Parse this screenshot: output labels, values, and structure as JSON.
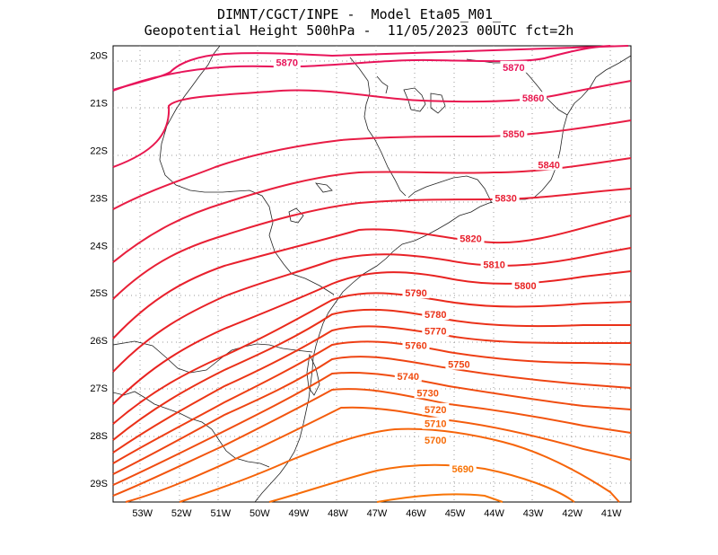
{
  "header": {
    "line1": "DIMNT/CGCT/INPE -  Model Eta05_M01_",
    "line2": "Geopotential Height 500hPa -  11/05/2023 00UTC fct=2h"
  },
  "axes": {
    "lon_labels": [
      "53W",
      "52W",
      "51W",
      "50W",
      "49W",
      "48W",
      "47W",
      "46W",
      "45W",
      "44W",
      "43W",
      "42W",
      "41W"
    ],
    "lat_labels": [
      "20S",
      "21S",
      "22S",
      "23S",
      "24S",
      "25S",
      "26S",
      "27S",
      "28S",
      "29S"
    ]
  },
  "chart_data": {
    "type": "contour",
    "title": "Geopotential Height 500hPa",
    "variable": "Geopotential Height 500hPa",
    "lon_range": [
      -53.75,
      -40.5
    ],
    "lat_range": [
      -29.4,
      -19.8
    ],
    "levels": [
      5690,
      5700,
      5710,
      5720,
      5730,
      5740,
      5750,
      5760,
      5770,
      5780,
      5790,
      5800,
      5810,
      5820,
      5830,
      5840,
      5850,
      5860,
      5870
    ],
    "labeled_contours": [
      {
        "value": "5870",
        "lon": -49.3,
        "lat": -20.15,
        "color": "#e8145a"
      },
      {
        "value": "5870",
        "lon": -43.5,
        "lat": -20.25,
        "color": "#e8145a"
      },
      {
        "value": "5860",
        "lon": -43.0,
        "lat": -20.9,
        "color": "#e8184f"
      },
      {
        "value": "5850",
        "lon": -43.5,
        "lat": -21.65,
        "color": "#e81c45"
      },
      {
        "value": "5840",
        "lon": -42.6,
        "lat": -22.3,
        "color": "#e81f3d"
      },
      {
        "value": "5830",
        "lon": -43.7,
        "lat": -23.0,
        "color": "#e82035"
      },
      {
        "value": "5820",
        "lon": -44.6,
        "lat": -23.85,
        "color": "#e8202d"
      },
      {
        "value": "5810",
        "lon": -44.0,
        "lat": -24.4,
        "color": "#e82228"
      },
      {
        "value": "5800",
        "lon": -43.2,
        "lat": -24.85,
        "color": "#e82220"
      },
      {
        "value": "5790",
        "lon": -46.0,
        "lat": -25.0,
        "color": "#ea2a1c"
      },
      {
        "value": "5780",
        "lon": -45.5,
        "lat": -25.45,
        "color": "#ea3018"
      },
      {
        "value": "5770",
        "lon": -45.5,
        "lat": -25.8,
        "color": "#ec3616"
      },
      {
        "value": "5760",
        "lon": -46.0,
        "lat": -26.1,
        "color": "#ee3e14"
      },
      {
        "value": "5750",
        "lon": -44.9,
        "lat": -26.5,
        "color": "#ee4412"
      },
      {
        "value": "5740",
        "lon": -46.2,
        "lat": -26.75,
        "color": "#f04c10"
      },
      {
        "value": "5730",
        "lon": -45.7,
        "lat": -27.1,
        "color": "#f2540e"
      },
      {
        "value": "5720",
        "lon": -45.5,
        "lat": -27.45,
        "color": "#f45c0c"
      },
      {
        "value": "5710",
        "lon": -45.5,
        "lat": -27.75,
        "color": "#f6640a"
      },
      {
        "value": "5700",
        "lon": -45.5,
        "lat": -28.1,
        "color": "#f66c08"
      },
      {
        "value": "5690",
        "lon": -44.8,
        "lat": -28.7,
        "color": "#f87406"
      }
    ]
  }
}
